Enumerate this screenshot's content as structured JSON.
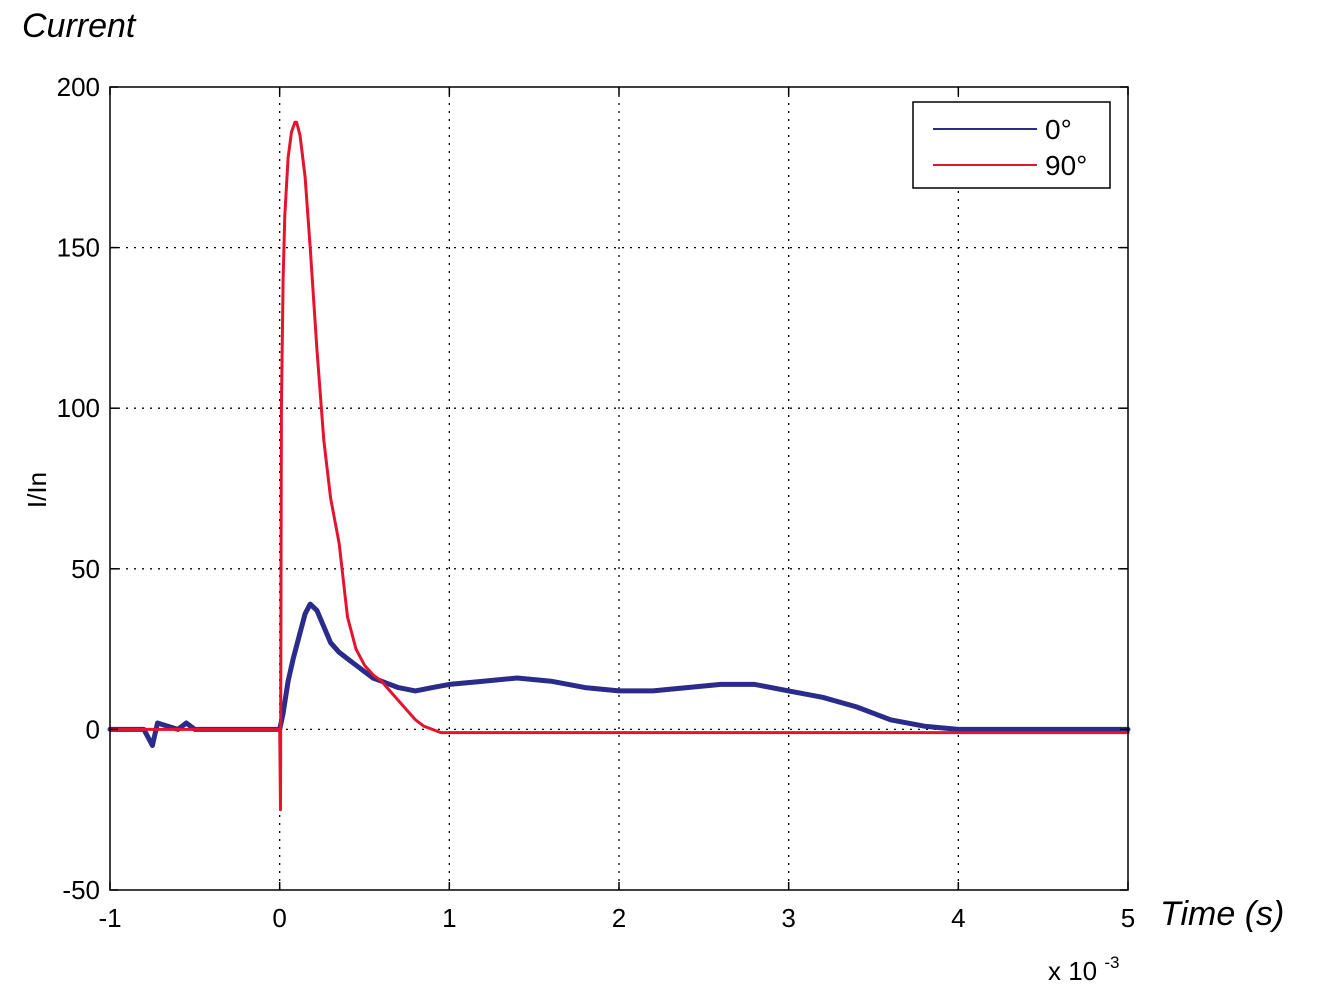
{
  "chart_data": {
    "type": "line",
    "title": "Current",
    "xlabel": "Time (s)",
    "ylabel": "I/In",
    "x_multiplier": {
      "base": "x 10",
      "exponent": "-3"
    },
    "xlim": [
      -1,
      5
    ],
    "ylim": [
      -50,
      200
    ],
    "x_ticks": [
      -1,
      0,
      1,
      2,
      3,
      4,
      5
    ],
    "y_ticks": [
      -50,
      0,
      50,
      100,
      150,
      200
    ],
    "x_tick_labels": [
      "-1",
      "0",
      "1",
      "2",
      "3",
      "4",
      "5"
    ],
    "y_tick_labels": [
      "-50",
      "0",
      "50",
      "100",
      "150",
      "200"
    ],
    "grid": true,
    "legend_position": "top-right",
    "colors": {
      "s0": "#2b2b8c",
      "s90": "#e5132d"
    },
    "series": [
      {
        "name": "0°",
        "color": "#2b2b8c",
        "x": [
          -1,
          -0.8,
          -0.75,
          -0.72,
          -0.6,
          -0.55,
          -0.5,
          -0.2,
          0,
          0.02,
          0.05,
          0.08,
          0.12,
          0.15,
          0.18,
          0.22,
          0.26,
          0.3,
          0.35,
          0.4,
          0.45,
          0.5,
          0.55,
          0.6,
          0.65,
          0.7,
          0.8,
          0.9,
          1.0,
          1.2,
          1.4,
          1.6,
          1.8,
          2.0,
          2.2,
          2.4,
          2.6,
          2.8,
          3.0,
          3.2,
          3.4,
          3.5,
          3.6,
          3.8,
          4.0,
          4.5,
          5.0
        ],
        "y": [
          0,
          0,
          -5,
          2,
          0,
          2,
          0,
          0,
          0,
          5,
          15,
          22,
          30,
          36,
          39,
          37,
          32,
          27,
          24,
          22,
          20,
          18,
          16,
          15,
          14,
          13,
          12,
          13,
          14,
          15,
          16,
          15,
          13,
          12,
          12,
          13,
          14,
          14,
          12,
          10,
          7,
          5,
          3,
          1,
          0,
          0,
          0
        ]
      },
      {
        "name": "90°",
        "color": "#e5132d",
        "x": [
          -1,
          -0.5,
          0,
          0.005,
          0.01,
          0.02,
          0.03,
          0.05,
          0.07,
          0.09,
          0.1,
          0.12,
          0.15,
          0.18,
          0.22,
          0.26,
          0.3,
          0.35,
          0.4,
          0.45,
          0.5,
          0.55,
          0.6,
          0.65,
          0.7,
          0.75,
          0.8,
          0.85,
          0.9,
          0.95,
          1.0,
          1.5,
          2.0,
          3.0,
          4.0,
          5.0
        ],
        "y": [
          0,
          0,
          0,
          -25,
          100,
          140,
          160,
          178,
          186,
          189,
          189,
          185,
          172,
          150,
          118,
          90,
          72,
          58,
          35,
          25,
          20,
          17,
          15,
          12,
          9,
          6,
          3,
          1,
          0,
          -1,
          -1,
          -1,
          -1,
          -1,
          -1,
          -1
        ]
      }
    ]
  }
}
